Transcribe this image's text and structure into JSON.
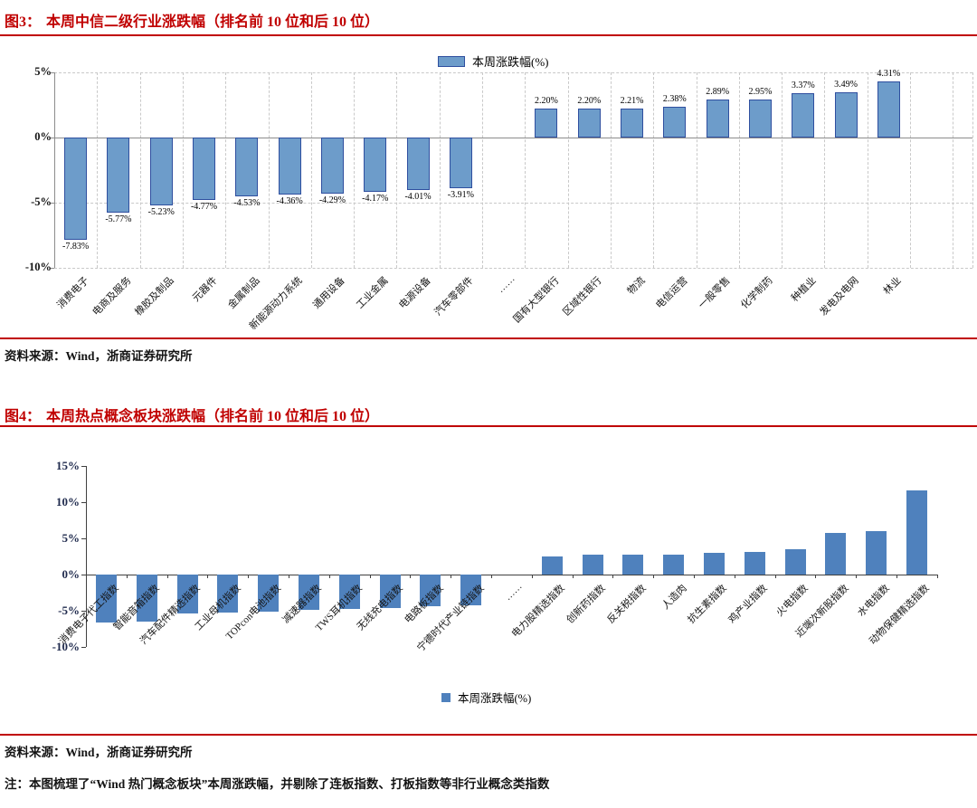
{
  "figure3": {
    "label": "图3：",
    "title": "本周中信二级行业涨跌幅（排名前 10 位和后 10 位）",
    "legend_label": "本周涨跌幅(%)",
    "source": "资料来源：Wind，浙商证券研究所"
  },
  "figure4": {
    "label": "图4：",
    "title": "本周热点概念板块涨跌幅（排名前 10 位和后 10 位）",
    "legend_label": "本周涨跌幅(%)",
    "source": "资料来源：Wind，浙商证券研究所",
    "note": "注：本图梳理了“Wind 热门概念板块”本周涨跌幅，并剔除了连板指数、打板指数等非行业概念类指数"
  },
  "colors": {
    "title_red": "#c00000",
    "chart1_bar_fill": "#6d9cca",
    "chart1_bar_border": "#2f4f9f",
    "chart2_bar_fill": "#4f81bd",
    "grid": "#c9c9c9",
    "zero_axis": "#8c8c8c",
    "axis_dark": "#404040"
  },
  "chart_data": [
    {
      "type": "bar",
      "title": "本周中信二级行业涨跌幅（排名前 10 位和后 10 位）",
      "legend": [
        "本周涨跌幅(%)"
      ],
      "legend_position": "top",
      "grid": true,
      "ylim": [
        -10,
        5
      ],
      "yticks": [
        {
          "value": 5,
          "label": "5%"
        },
        {
          "value": 0,
          "label": "0%"
        },
        {
          "value": -5,
          "label": "-5%"
        },
        {
          "value": -10,
          "label": "-10%"
        }
      ],
      "categories": [
        "消费电子",
        "电商及服务",
        "橡胶及制品",
        "元器件",
        "金属制品",
        "新能源动力系统",
        "通用设备",
        "工业金属",
        "电源设备",
        "汽车零部件",
        "……",
        "国有大型银行",
        "区域性银行",
        "物流",
        "电信运营",
        "一般零售",
        "化学制药",
        "种植业",
        "发电及电网",
        "林业"
      ],
      "values": [
        -7.83,
        -5.77,
        -5.23,
        -4.77,
        -4.53,
        -4.36,
        -4.29,
        -4.17,
        -4.01,
        -3.91,
        null,
        2.2,
        2.2,
        2.21,
        2.38,
        2.89,
        2.95,
        3.37,
        3.49,
        4.31
      ],
      "data_labels": [
        "-7.83%",
        "-5.77%",
        "-5.23%",
        "-4.77%",
        "-4.53%",
        "-4.36%",
        "-4.29%",
        "-4.17%",
        "-4.01%",
        "-3.91%",
        "",
        "2.20%",
        "2.20%",
        "2.21%",
        "2.38%",
        "2.89%",
        "2.95%",
        "3.37%",
        "3.49%",
        "4.31%"
      ]
    },
    {
      "type": "bar",
      "title": "本周热点概念板块涨跌幅（排名前 10 位和后 10 位）",
      "legend": [
        "本周涨跌幅(%)"
      ],
      "legend_position": "bottom",
      "grid": false,
      "ylim": [
        -10,
        15
      ],
      "yticks": [
        {
          "value": 15,
          "label": "15%"
        },
        {
          "value": 10,
          "label": "10%"
        },
        {
          "value": 5,
          "label": "5%"
        },
        {
          "value": 0,
          "label": "0%"
        },
        {
          "value": -5,
          "label": "-5%"
        },
        {
          "value": -10,
          "label": "-10%"
        }
      ],
      "categories": [
        "消费电子代工指数",
        "智能音箱指数",
        "汽车配件精选指数",
        "工业母机指数",
        "TOPcon电池指数",
        "减速器指数",
        "TWS耳机指数",
        "无线充电指数",
        "电路板指数",
        "宁德时代产业链指数",
        "……",
        "电力股精选指数",
        "创新药指数",
        "反关税指数",
        "人造肉",
        "抗生素指数",
        "鸡产业指数",
        "火电指数",
        "近端次新股指数",
        "水电指数",
        "动物保健精选指数"
      ],
      "values": [
        -6.6,
        -6.5,
        -5.4,
        -5.2,
        -5.1,
        -4.9,
        -4.8,
        -4.6,
        -4.4,
        -4.2,
        null,
        2.5,
        2.7,
        2.8,
        2.8,
        3.0,
        3.1,
        3.5,
        5.8,
        6.0,
        11.6
      ],
      "values_estimated": true,
      "data_labels": []
    }
  ]
}
